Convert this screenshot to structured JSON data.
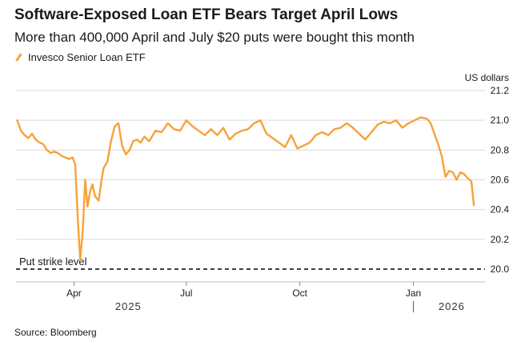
{
  "title": "Software-Exposed Loan ETF Bears Target April Lows",
  "subtitle": "More than 400,000 April and July $20 puts were bought this month",
  "source": "Source: Bloomberg",
  "colors": {
    "series": "#f7a23a",
    "grid": "#d9d9d9",
    "axis": "#000000"
  },
  "chart_data": {
    "type": "line",
    "ylabel": "US dollars",
    "ylim": [
      19.93,
      21.2
    ],
    "yticks": [
      20.0,
      20.2,
      20.4,
      20.6,
      20.8,
      21.0,
      21.2
    ],
    "xlim": [
      "2025-02-13",
      "2026-02-28"
    ],
    "xticks": [
      {
        "date": "2025-04-01",
        "label": "Apr"
      },
      {
        "date": "2025-07-01",
        "label": "Jul"
      },
      {
        "date": "2025-10-01",
        "label": "Oct"
      },
      {
        "date": "2026-01-01",
        "label": "Jan"
      }
    ],
    "year_labels": [
      {
        "date": "2025-05-15",
        "label": "2025"
      },
      {
        "date": "2026-02-01",
        "label": "2026"
      }
    ],
    "legend": "top-left",
    "grid": true,
    "annotations": [
      {
        "type": "hline",
        "y": 20.0,
        "label": "Put strike level",
        "style": "dashed"
      }
    ],
    "series": [
      {
        "name": "Invesco Senior Loan ETF",
        "x": [
          "2025-02-14",
          "2025-02-17",
          "2025-02-20",
          "2025-02-23",
          "2025-02-26",
          "2025-03-01",
          "2025-03-04",
          "2025-03-07",
          "2025-03-10",
          "2025-03-13",
          "2025-03-16",
          "2025-03-19",
          "2025-03-22",
          "2025-03-25",
          "2025-03-28",
          "2025-03-31",
          "2025-04-02",
          "2025-04-04",
          "2025-04-06",
          "2025-04-08",
          "2025-04-10",
          "2025-04-12",
          "2025-04-14",
          "2025-04-16",
          "2025-04-18",
          "2025-04-21",
          "2025-04-23",
          "2025-04-25",
          "2025-04-28",
          "2025-05-01",
          "2025-05-04",
          "2025-05-07",
          "2025-05-10",
          "2025-05-13",
          "2025-05-16",
          "2025-05-19",
          "2025-05-22",
          "2025-05-25",
          "2025-05-28",
          "2025-06-01",
          "2025-06-06",
          "2025-06-11",
          "2025-06-16",
          "2025-06-21",
          "2025-06-26",
          "2025-07-01",
          "2025-07-06",
          "2025-07-11",
          "2025-07-16",
          "2025-07-21",
          "2025-07-26",
          "2025-07-31",
          "2025-08-05",
          "2025-08-10",
          "2025-08-15",
          "2025-08-20",
          "2025-08-25",
          "2025-08-30",
          "2025-09-04",
          "2025-09-09",
          "2025-09-14",
          "2025-09-19",
          "2025-09-24",
          "2025-09-29",
          "2025-10-04",
          "2025-10-09",
          "2025-10-14",
          "2025-10-19",
          "2025-10-24",
          "2025-10-29",
          "2025-11-03",
          "2025-11-08",
          "2025-11-13",
          "2025-11-18",
          "2025-11-23",
          "2025-11-28",
          "2025-12-03",
          "2025-12-08",
          "2025-12-13",
          "2025-12-18",
          "2025-12-23",
          "2025-12-28",
          "2026-01-02",
          "2026-01-07",
          "2026-01-12",
          "2026-01-15",
          "2026-01-18",
          "2026-01-21",
          "2026-01-24",
          "2026-01-27",
          "2026-01-30",
          "2026-02-02",
          "2026-02-05",
          "2026-02-08",
          "2026-02-11",
          "2026-02-14",
          "2026-02-17",
          "2026-02-19"
        ],
        "values": [
          21.0,
          20.93,
          20.9,
          20.88,
          20.91,
          20.87,
          20.85,
          20.84,
          20.8,
          20.78,
          20.79,
          20.78,
          20.76,
          20.75,
          20.74,
          20.75,
          20.7,
          20.35,
          20.06,
          20.25,
          20.6,
          20.42,
          20.52,
          20.57,
          20.49,
          20.46,
          20.58,
          20.68,
          20.72,
          20.86,
          20.96,
          20.98,
          20.83,
          20.77,
          20.8,
          20.86,
          20.87,
          20.85,
          20.89,
          20.86,
          20.93,
          20.92,
          20.98,
          20.94,
          20.93,
          21.0,
          20.96,
          20.93,
          20.9,
          20.94,
          20.9,
          20.95,
          20.87,
          20.91,
          20.93,
          20.94,
          20.98,
          21.0,
          20.91,
          20.88,
          20.85,
          20.82,
          20.9,
          20.81,
          20.83,
          20.85,
          20.9,
          20.92,
          20.9,
          20.94,
          20.95,
          20.98,
          20.95,
          20.91,
          20.87,
          20.92,
          20.97,
          20.99,
          20.98,
          21.0,
          20.95,
          20.98,
          21.0,
          21.02,
          21.01,
          20.98,
          20.91,
          20.84,
          20.76,
          20.62,
          20.66,
          20.65,
          20.6,
          20.65,
          20.64,
          20.61,
          20.59,
          20.43
        ]
      }
    ]
  }
}
